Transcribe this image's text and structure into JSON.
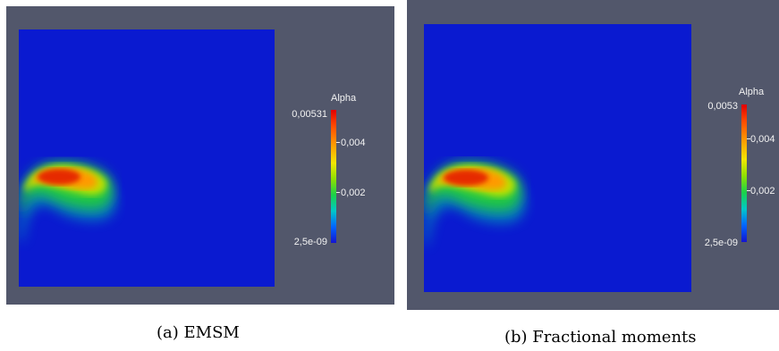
{
  "panels": [
    {
      "colorbar": {
        "title": "Alpha",
        "max_label": "0,00531",
        "tick_high_label": "0,004",
        "tick_low_label": "0,002",
        "min_label": "2,5e-09"
      },
      "caption": "(a) EMSM"
    },
    {
      "colorbar": {
        "title": "Alpha",
        "max_label": "0,0053",
        "tick_high_label": "0,004",
        "tick_low_label": "0,002",
        "min_label": "2,5e-09"
      },
      "caption": "(b) Fractional moments"
    }
  ],
  "colors": {
    "background_frame": "#52576b",
    "field_base": "#0a1ad0",
    "colormap": [
      "#1414d0",
      "#0064ff",
      "#00c8c8",
      "#1ad24a",
      "#8fe000",
      "#f3e600",
      "#ff9a00",
      "#ff4a00",
      "#e00000"
    ]
  }
}
